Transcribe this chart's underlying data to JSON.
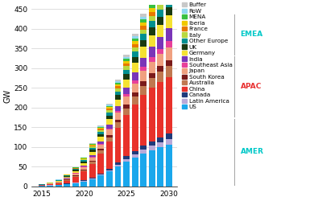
{
  "years": [
    2015,
    2016,
    2017,
    2018,
    2019,
    2020,
    2021,
    2022,
    2023,
    2024,
    2025,
    2026,
    2027,
    2028,
    2029,
    2030
  ],
  "regions": {
    "US": [
      2,
      3,
      4,
      6,
      9,
      13,
      19,
      28,
      38,
      50,
      63,
      74,
      84,
      92,
      99,
      105
    ],
    "Latin America": [
      0.1,
      0.2,
      0.3,
      0.5,
      0.8,
      1.2,
      1.8,
      2.5,
      3.5,
      5,
      6.5,
      8,
      10,
      12,
      14,
      16
    ],
    "Canada": [
      0.1,
      0.2,
      0.4,
      0.6,
      1,
      1.5,
      2.2,
      3,
      4,
      5.5,
      7,
      8.5,
      10,
      11,
      12,
      13
    ],
    "China": [
      1,
      2,
      4,
      8,
      14,
      22,
      34,
      50,
      68,
      88,
      105,
      118,
      128,
      135,
      140,
      143
    ],
    "Australia": [
      0.2,
      0.4,
      0.8,
      1.5,
      2.5,
      4,
      6,
      8,
      11,
      14,
      17,
      20,
      23,
      25,
      27,
      29
    ],
    "South Korea": [
      0.2,
      0.3,
      0.5,
      0.9,
      1.4,
      2,
      2.8,
      4,
      5.5,
      7,
      9,
      10,
      12,
      13,
      14,
      15
    ],
    "Japan": [
      0.5,
      1,
      1.8,
      3,
      4.5,
      6,
      8.5,
      11,
      14,
      17,
      20,
      23,
      26,
      28,
      30,
      32
    ],
    "Southeast Asia": [
      0.1,
      0.1,
      0.2,
      0.4,
      0.7,
      1,
      1.6,
      2.5,
      3.5,
      5,
      7,
      8.5,
      10,
      12,
      13,
      15
    ],
    "India": [
      0.1,
      0.2,
      0.5,
      0.9,
      1.5,
      2.5,
      4,
      6,
      9,
      12,
      16,
      20,
      24,
      27,
      30,
      33
    ],
    "Germany": [
      0.4,
      0.8,
      1.5,
      2.8,
      4,
      6,
      8.5,
      11,
      14,
      17,
      21,
      24,
      27,
      29,
      31,
      33
    ],
    "UK": [
      0.2,
      0.4,
      0.8,
      1.5,
      2.5,
      3.8,
      5.5,
      7,
      9,
      11,
      13,
      15,
      17,
      19,
      20,
      21
    ],
    "Other Europe": [
      0.2,
      0.4,
      0.8,
      1.5,
      2.2,
      3.2,
      4.5,
      6,
      8,
      10,
      12,
      14,
      16,
      17,
      18,
      19
    ],
    "Italy": [
      0.1,
      0.3,
      0.6,
      1,
      1.6,
      2.2,
      3,
      4,
      5.5,
      7,
      8.5,
      10,
      11,
      12,
      13,
      14
    ],
    "France": [
      0.1,
      0.2,
      0.4,
      0.7,
      1.1,
      1.7,
      2.5,
      3.5,
      4.8,
      6,
      7.5,
      8.8,
      10,
      11,
      12,
      13
    ],
    "Iberia": [
      0.1,
      0.2,
      0.3,
      0.6,
      0.9,
      1.4,
      2,
      2.8,
      3.8,
      5,
      6,
      7,
      8,
      9,
      10,
      11
    ],
    "MENA": [
      0.1,
      0.1,
      0.2,
      0.4,
      0.6,
      1,
      1.5,
      2.2,
      3,
      4,
      5,
      6,
      7,
      8,
      9,
      10
    ],
    "RoW": [
      0.1,
      0.2,
      0.3,
      0.5,
      0.7,
      1,
      1.5,
      2,
      3,
      4,
      5,
      6,
      7,
      8,
      9,
      10
    ],
    "Buffer": [
      0.1,
      0.1,
      0.2,
      0.3,
      0.5,
      0.8,
      1.2,
      1.8,
      2.5,
      3.5,
      5,
      6,
      8,
      10,
      12,
      15
    ]
  },
  "colors": {
    "US": "#1aa7ec",
    "Latin America": "#b8a9d9",
    "Canada": "#1f3a7a",
    "China": "#e8312a",
    "Australia": "#c07850",
    "South Korea": "#7a1a1a",
    "Japan": "#f0a080",
    "Southeast Asia": "#e8409a",
    "India": "#7a35b8",
    "Germany": "#f5e232",
    "UK": "#1a3a10",
    "Other Europe": "#009090",
    "Italy": "#b8d840",
    "France": "#e87800",
    "Iberia": "#f0c800",
    "MENA": "#38c040",
    "RoW": "#90d8f0",
    "Buffer": "#c8c8c8"
  },
  "ylabel": "GW",
  "ylim": [
    0,
    460
  ],
  "yticks": [
    0,
    50,
    100,
    150,
    200,
    250,
    300,
    350,
    400,
    450
  ],
  "xticks": [
    2015,
    2020,
    2025,
    2030
  ],
  "region_labels": [
    {
      "text": "EMEA",
      "color": "#00c8c8",
      "ymin": 0.73,
      "ymax": 0.93,
      "ymid": 0.83
    },
    {
      "text": "APAC",
      "color": "#e83030",
      "ymin": 0.42,
      "ymax": 0.72,
      "ymid": 0.57
    },
    {
      "text": "AMER",
      "color": "#00c8c8",
      "ymin": 0.08,
      "ymax": 0.41,
      "ymid": 0.245
    }
  ],
  "legend_order": [
    "Buffer",
    "RoW",
    "MENA",
    "Iberia",
    "France",
    "Italy",
    "Other Europe",
    "UK",
    "Germany",
    "India",
    "Southeast Asia",
    "Japan",
    "South Korea",
    "Australia",
    "China",
    "Canada",
    "Latin America",
    "US"
  ]
}
